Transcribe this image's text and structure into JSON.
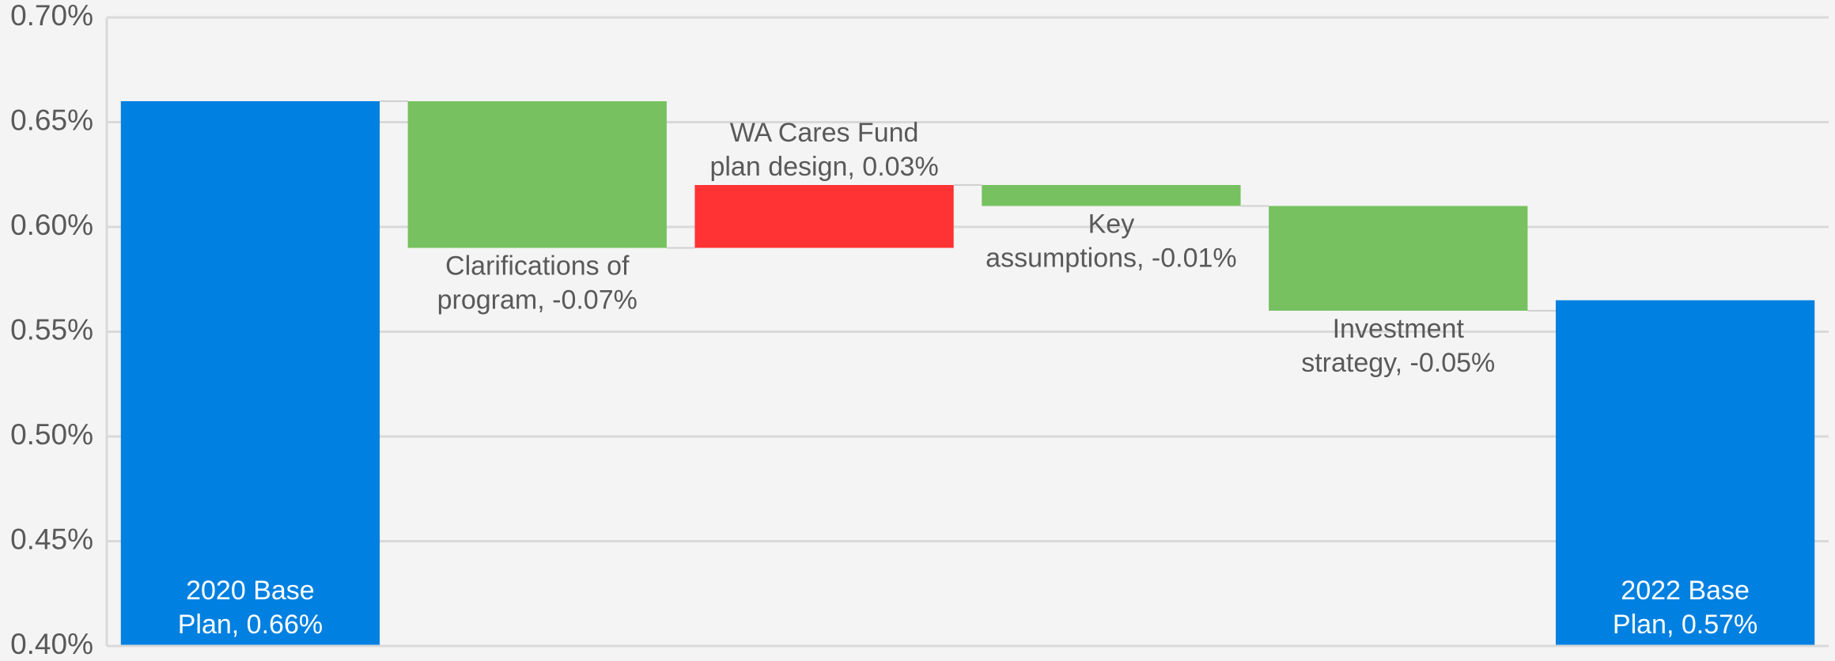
{
  "chart_data": {
    "type": "waterfall",
    "categories": [
      "2020 Base Plan",
      "Clarifications of program",
      "WA Cares Fund plan design",
      "Key assumptions",
      "Investment strategy",
      "2022 Base Plan"
    ],
    "values": [
      0.66,
      -0.07,
      0.03,
      -0.01,
      -0.05,
      0.565
    ],
    "value_labels": [
      [
        "2020 Base",
        "Plan, 0.66%"
      ],
      [
        "Clarifications of",
        "program, -0.07%"
      ],
      [
        "WA Cares Fund",
        "plan design, 0.03%"
      ],
      [
        "Key",
        "assumptions, -0.01%"
      ],
      [
        "Investment",
        "strategy, -0.05%"
      ],
      [
        "2022 Base",
        "Plan, 0.57%"
      ]
    ],
    "colors": {
      "total": "#0080e0",
      "increase": "#ff3333",
      "decrease": "#77c160"
    },
    "ylim": [
      0.4,
      0.7
    ],
    "yticks": [
      {
        "value": 0.4,
        "label": "0.40%"
      },
      {
        "value": 0.45,
        "label": "0.45%"
      },
      {
        "value": 0.5,
        "label": "0.50%"
      },
      {
        "value": 0.55,
        "label": "0.55%"
      },
      {
        "value": 0.6,
        "label": "0.60%"
      },
      {
        "value": 0.65,
        "label": "0.65%"
      },
      {
        "value": 0.7,
        "label": "0.70%"
      }
    ],
    "grid": true
  }
}
